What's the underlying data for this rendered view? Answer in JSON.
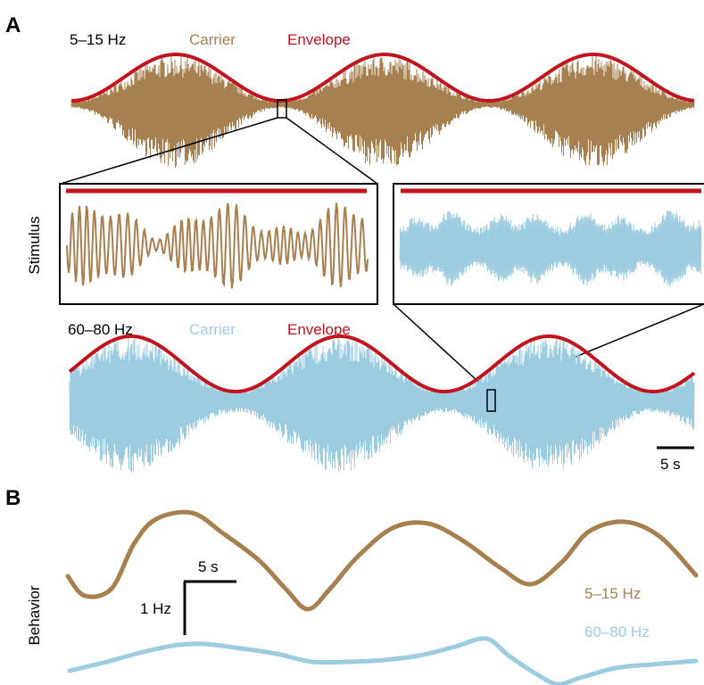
{
  "figure": {
    "panel_a": {
      "letter": "A",
      "side_label": "Stimulus",
      "top_trace": {
        "band": "5–15 Hz",
        "carrier_label": "Carrier",
        "envelope_label": "Envelope"
      },
      "bottom_trace": {
        "band": "60–80 Hz",
        "carrier_label": "Carrier",
        "envelope_label": "Envelope"
      },
      "scale_bar_time": "5 s"
    },
    "panel_b": {
      "letter": "B",
      "side_label": "Behavior",
      "scale_time": "5 s",
      "scale_freq": "1 Hz",
      "legend": [
        {
          "label": "5–15 Hz",
          "color": "#a6804f"
        },
        {
          "label": "60–80 Hz",
          "color": "#9ccce0"
        }
      ]
    },
    "colors": {
      "low_band": "#a6804f",
      "high_band": "#9ccce0",
      "envelope": "#c0141e",
      "ink": "#000000"
    }
  }
}
